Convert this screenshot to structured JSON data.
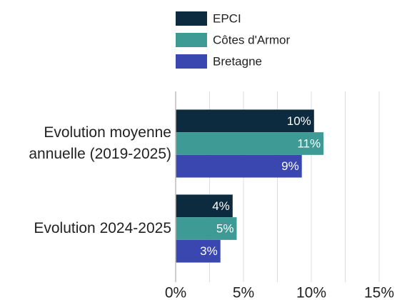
{
  "chart_data": {
    "type": "hbar",
    "categories": [
      "Evolution moyenne annuelle (2019-2025)",
      "Evolution 2024-2025"
    ],
    "series": [
      {
        "name": "EPCI",
        "color": "#0d2b3e",
        "values": [
          10.2,
          4.2
        ],
        "value_labels": [
          "10%",
          "4%"
        ]
      },
      {
        "name": "Côtes d'Armor",
        "color": "#3d9a94",
        "values": [
          10.9,
          4.5
        ],
        "value_labels": [
          "11%",
          "5%"
        ]
      },
      {
        "name": "Bretagne",
        "color": "#3a47b0",
        "values": [
          9.3,
          3.3
        ],
        "value_labels": [
          "9%",
          "3%"
        ]
      }
    ],
    "xlim": [
      0,
      16
    ],
    "xticks": [
      {
        "value": 0,
        "label": "0%"
      },
      {
        "value": 5,
        "label": "5%"
      },
      {
        "value": 10,
        "label": "10%"
      },
      {
        "value": 15,
        "label": "15%"
      }
    ],
    "minor_xticks": [
      2.5,
      7.5,
      12.5
    ],
    "grid": true,
    "legend": "top"
  }
}
